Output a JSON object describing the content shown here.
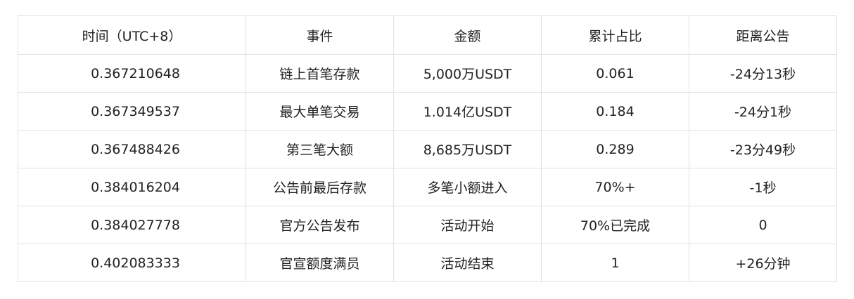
{
  "table": {
    "headers": [
      "时间（UTC+8）",
      "事件",
      "金额",
      "累计占比",
      "距离公告"
    ],
    "rows": [
      [
        "0.367210648",
        "链上首笔存款",
        "5,000万USDT",
        "0.061",
        "-24分13秒"
      ],
      [
        "0.367349537",
        "最大单笔交易",
        "1.014亿USDT",
        "0.184",
        "-24分1秒"
      ],
      [
        "0.367488426",
        "第三笔大额",
        "8,685万USDT",
        "0.289",
        "-23分49秒"
      ],
      [
        "0.384016204",
        "公告前最后存款",
        "多笔小额进入",
        "70%+",
        "-1秒"
      ],
      [
        "0.384027778",
        "官方公告发布",
        "活动开始",
        "70%已完成",
        "0"
      ],
      [
        "0.402083333",
        "官宣额度满员",
        "活动结束",
        "1",
        "+26分钟"
      ]
    ]
  }
}
